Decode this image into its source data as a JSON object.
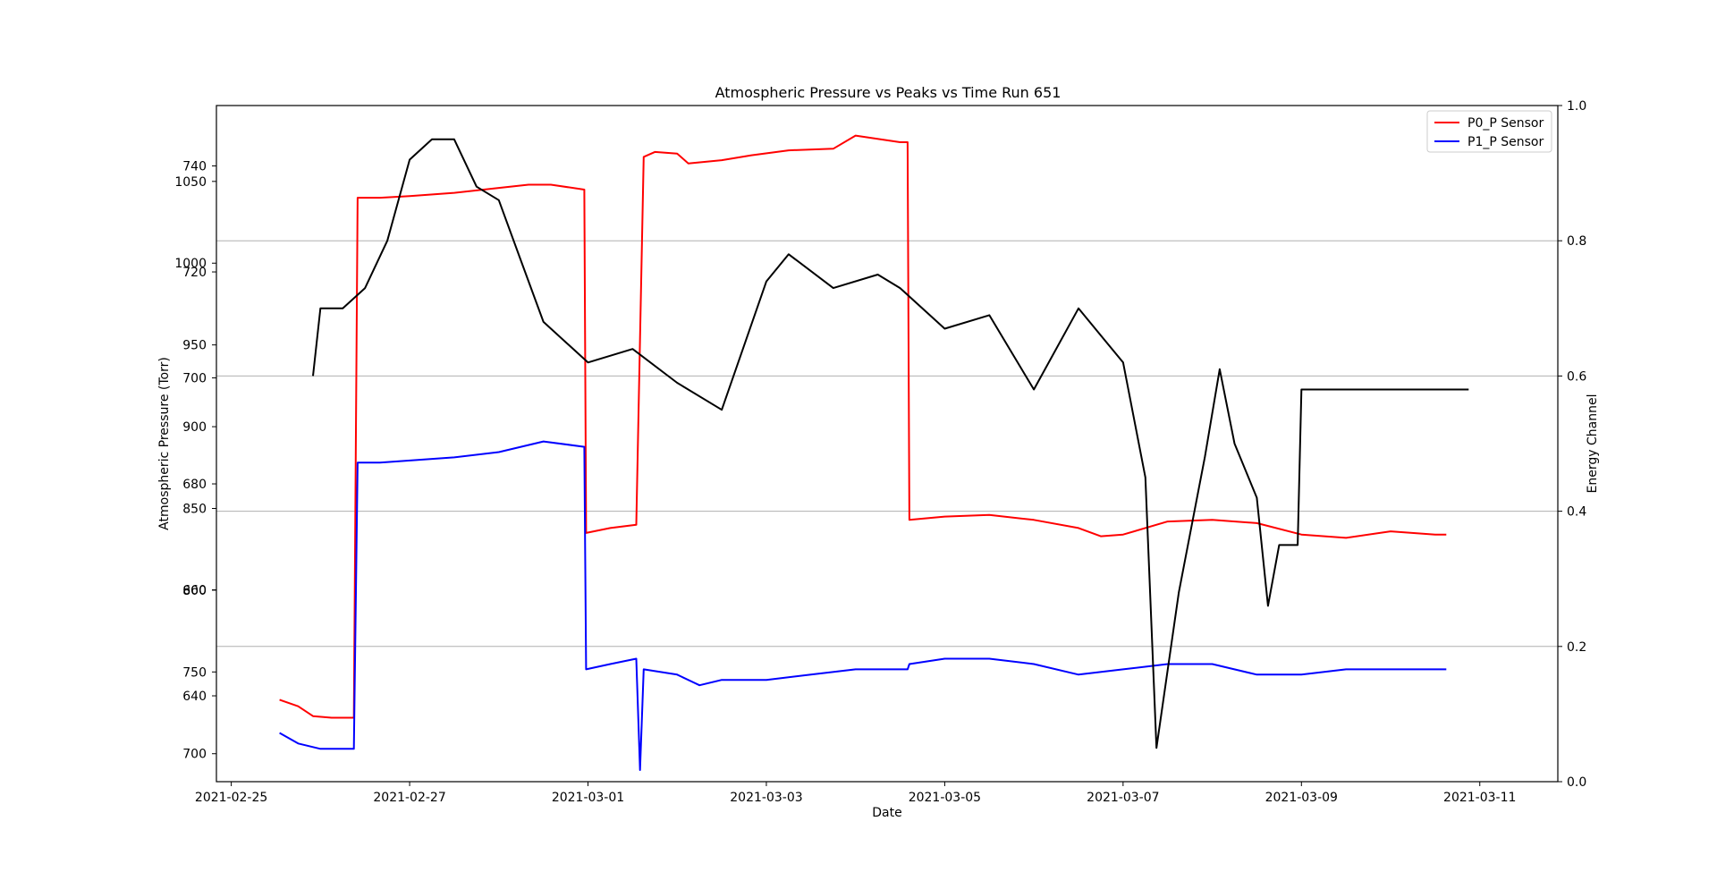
{
  "chart_data": {
    "type": "line",
    "title": "Atmospheric Pressure vs Peaks vs Time Run 651",
    "xlabel": "Date",
    "ylabel_left": "Atmospheric Pressure (Torr)",
    "ylabel_right": "Energy Channel",
    "x_ticks": [
      "2021-02-25",
      "2021-02-27",
      "2021-03-01",
      "2021-03-03",
      "2021-03-05",
      "2021-03-07",
      "2021-03-09",
      "2021-03-11"
    ],
    "xlim": [
      "2021-02-24T20:00",
      "2021-03-11T21:00"
    ],
    "grid": "horizontal (right axis)",
    "legend_position": "top-right",
    "left_axis_stacked_ticks": [
      {
        "label": "1050",
        "value": 1050,
        "axis": "P0"
      },
      {
        "label": "740",
        "value": 740,
        "axis": "P1"
      },
      {
        "label": "1000",
        "value": 1000,
        "axis": "P0"
      },
      {
        "label": "720",
        "value": 720,
        "axis": "P1"
      },
      {
        "label": "950",
        "value": 950,
        "axis": "P0"
      },
      {
        "label": "700",
        "value": 700,
        "axis": "P1"
      },
      {
        "label": "900",
        "value": 900,
        "axis": "P0"
      },
      {
        "label": "680",
        "value": 680,
        "axis": "P1"
      },
      {
        "label": "850",
        "value": 850,
        "axis": "P0"
      },
      {
        "label": "800",
        "value": 800,
        "axis": "P0"
      },
      {
        "label": "660",
        "value": 660,
        "axis": "P1"
      },
      {
        "label": "750",
        "value": 750,
        "axis": "P0"
      },
      {
        "label": "640",
        "value": 640,
        "axis": "P1"
      },
      {
        "label": "700",
        "value": 700,
        "axis": "P0"
      }
    ],
    "right_axis": {
      "ylim": [
        0.0,
        1.0
      ],
      "ticks": [
        "0.0",
        "0.2",
        "0.4",
        "0.6",
        "0.8",
        "1.0"
      ]
    },
    "series": [
      {
        "name": "P0_P Sensor",
        "color": "#ff0000",
        "axis": "left (P0 scale)",
        "points": [
          [
            "2021-02-25T13:00",
            733
          ],
          [
            "2021-02-25T18:00",
            729
          ],
          [
            "2021-02-25T22:00",
            723
          ],
          [
            "2021-02-26T03:00",
            722
          ],
          [
            "2021-02-26T09:00",
            722
          ],
          [
            "2021-02-26T10:00",
            1040
          ],
          [
            "2021-02-26T16:00",
            1040
          ],
          [
            "2021-02-27T00:00",
            1041
          ],
          [
            "2021-02-27T12:00",
            1043
          ],
          [
            "2021-02-28T00:00",
            1046
          ],
          [
            "2021-02-28T08:00",
            1048
          ],
          [
            "2021-02-28T14:00",
            1048
          ],
          [
            "2021-02-28T23:00",
            1045
          ],
          [
            "2021-02-28T23:30",
            835
          ],
          [
            "2021-03-01T06:00",
            838
          ],
          [
            "2021-03-01T13:00",
            840
          ],
          [
            "2021-03-01T15:00",
            1065
          ],
          [
            "2021-03-01T18:00",
            1068
          ],
          [
            "2021-03-02T00:00",
            1067
          ],
          [
            "2021-03-02T03:00",
            1061
          ],
          [
            "2021-03-02T12:00",
            1063
          ],
          [
            "2021-03-02T20:00",
            1066
          ],
          [
            "2021-03-03T06:00",
            1069
          ],
          [
            "2021-03-03T18:00",
            1070
          ],
          [
            "2021-03-04T00:00",
            1078
          ],
          [
            "2021-03-04T12:00",
            1074
          ],
          [
            "2021-03-04T14:00",
            1074
          ],
          [
            "2021-03-04T14:30",
            843
          ],
          [
            "2021-03-05T00:00",
            845
          ],
          [
            "2021-03-05T12:00",
            846
          ],
          [
            "2021-03-06T00:00",
            843
          ],
          [
            "2021-03-06T12:00",
            838
          ],
          [
            "2021-03-06T18:00",
            833
          ],
          [
            "2021-03-07T00:00",
            834
          ],
          [
            "2021-03-07T12:00",
            842
          ],
          [
            "2021-03-08T00:00",
            843
          ],
          [
            "2021-03-08T12:00",
            841
          ],
          [
            "2021-03-09T00:00",
            834
          ],
          [
            "2021-03-09T12:00",
            832
          ],
          [
            "2021-03-10T00:00",
            836
          ],
          [
            "2021-03-10T12:00",
            834
          ],
          [
            "2021-03-10T15:00",
            834
          ]
        ]
      },
      {
        "name": "P1_P Sensor",
        "color": "#0000ff",
        "axis": "left (P1 scale)",
        "points": [
          [
            "2021-02-25T13:00",
            633
          ],
          [
            "2021-02-25T18:00",
            631
          ],
          [
            "2021-02-26T00:00",
            630
          ],
          [
            "2021-02-26T09:00",
            630
          ],
          [
            "2021-02-26T10:00",
            684
          ],
          [
            "2021-02-26T16:00",
            684
          ],
          [
            "2021-02-27T12:00",
            685
          ],
          [
            "2021-02-28T00:00",
            686
          ],
          [
            "2021-02-28T12:00",
            688
          ],
          [
            "2021-02-28T23:00",
            687
          ],
          [
            "2021-02-28T23:30",
            645
          ],
          [
            "2021-03-01T06:00",
            646
          ],
          [
            "2021-03-01T13:00",
            647
          ],
          [
            "2021-03-01T14:00",
            626
          ],
          [
            "2021-03-01T15:00",
            645
          ],
          [
            "2021-03-02T00:00",
            644
          ],
          [
            "2021-03-02T06:00",
            642
          ],
          [
            "2021-03-02T12:00",
            643
          ],
          [
            "2021-03-03T00:00",
            643
          ],
          [
            "2021-03-03T12:00",
            644
          ],
          [
            "2021-03-04T00:00",
            645
          ],
          [
            "2021-03-04T14:00",
            645
          ],
          [
            "2021-03-04T14:30",
            646
          ],
          [
            "2021-03-05T00:00",
            647
          ],
          [
            "2021-03-05T12:00",
            647
          ],
          [
            "2021-03-06T00:00",
            646
          ],
          [
            "2021-03-06T12:00",
            644
          ],
          [
            "2021-03-07T00:00",
            645
          ],
          [
            "2021-03-07T12:00",
            646
          ],
          [
            "2021-03-08T00:00",
            646
          ],
          [
            "2021-03-08T12:00",
            644
          ],
          [
            "2021-03-09T00:00",
            644
          ],
          [
            "2021-03-09T12:00",
            645
          ],
          [
            "2021-03-10T00:00",
            645
          ],
          [
            "2021-03-10T15:00",
            645
          ]
        ]
      },
      {
        "name": "",
        "color": "#000000",
        "axis": "right",
        "points": [
          [
            "2021-02-25T22:00",
            0.6
          ],
          [
            "2021-02-26T00:00",
            0.7
          ],
          [
            "2021-02-26T06:00",
            0.7
          ],
          [
            "2021-02-26T12:00",
            0.73
          ],
          [
            "2021-02-26T18:00",
            0.8
          ],
          [
            "2021-02-27T00:00",
            0.92
          ],
          [
            "2021-02-27T06:00",
            0.95
          ],
          [
            "2021-02-27T12:00",
            0.95
          ],
          [
            "2021-02-27T18:00",
            0.88
          ],
          [
            "2021-02-28T00:00",
            0.86
          ],
          [
            "2021-02-28T06:00",
            0.77
          ],
          [
            "2021-02-28T12:00",
            0.68
          ],
          [
            "2021-02-28T18:00",
            0.65
          ],
          [
            "2021-03-01T00:00",
            0.62
          ],
          [
            "2021-03-01T12:00",
            0.64
          ],
          [
            "2021-03-02T00:00",
            0.59
          ],
          [
            "2021-03-02T12:00",
            0.55
          ],
          [
            "2021-03-03T00:00",
            0.74
          ],
          [
            "2021-03-03T06:00",
            0.78
          ],
          [
            "2021-03-03T18:00",
            0.73
          ],
          [
            "2021-03-04T06:00",
            0.75
          ],
          [
            "2021-03-04T12:00",
            0.73
          ],
          [
            "2021-03-05T00:00",
            0.67
          ],
          [
            "2021-03-05T12:00",
            0.69
          ],
          [
            "2021-03-06T00:00",
            0.58
          ],
          [
            "2021-03-06T12:00",
            0.7
          ],
          [
            "2021-03-07T00:00",
            0.62
          ],
          [
            "2021-03-07T06:00",
            0.45
          ],
          [
            "2021-03-07T09:00",
            0.05
          ],
          [
            "2021-03-07T15:00",
            0.28
          ],
          [
            "2021-03-07T22:00",
            0.48
          ],
          [
            "2021-03-08T02:00",
            0.61
          ],
          [
            "2021-03-08T06:00",
            0.5
          ],
          [
            "2021-03-08T12:00",
            0.42
          ],
          [
            "2021-03-08T15:00",
            0.26
          ],
          [
            "2021-03-08T18:00",
            0.35
          ],
          [
            "2021-03-08T23:00",
            0.35
          ],
          [
            "2021-03-09T00:00",
            0.58
          ],
          [
            "2021-03-10T12:00",
            0.58
          ],
          [
            "2021-03-10T21:00",
            0.58
          ]
        ]
      }
    ]
  }
}
